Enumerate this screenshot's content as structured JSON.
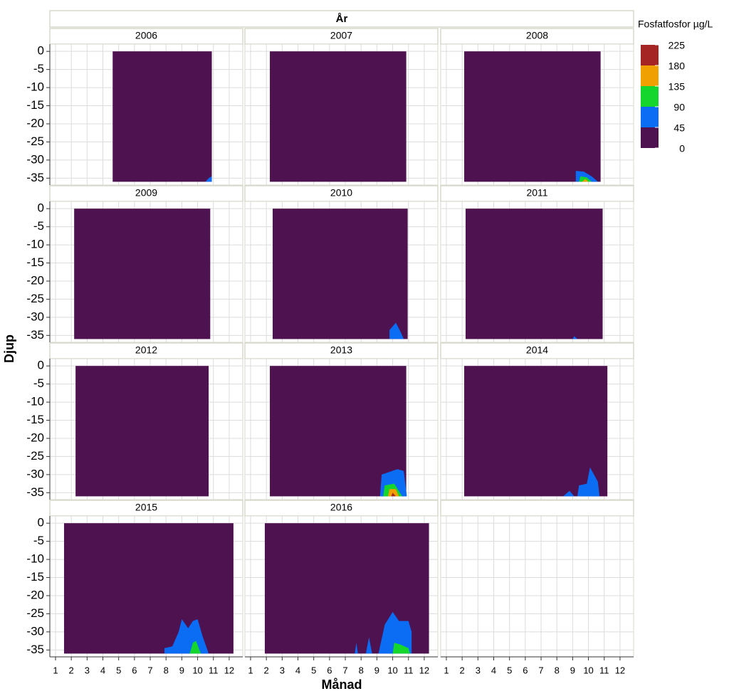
{
  "chart_data": {
    "type": "contour",
    "facet_title": "År",
    "xlabel": "Månad",
    "ylabel": "Djup",
    "xlim": [
      0.64,
      12.86
    ],
    "ylim": [
      -36.9,
      2
    ],
    "xticks": [
      1,
      2,
      3,
      4,
      5,
      6,
      7,
      8,
      9,
      10,
      11,
      12
    ],
    "yticks": [
      0,
      -5,
      -10,
      -15,
      -20,
      -25,
      -30,
      -35
    ],
    "grid": true,
    "legend_title": "Fosfatfosfor µg/L",
    "levels": [
      0,
      45,
      90,
      135,
      180,
      225
    ],
    "colors": [
      "#4e1250",
      "#0b6cf4",
      "#14d62c",
      "#f0a000",
      "#a52525"
    ],
    "depth_bottom": -36,
    "panels": [
      {
        "label": "2006",
        "extent": [
          4.62,
          10.9
        ],
        "regions": [
          {
            "level": 1,
            "x": [
              10.5,
              10.7,
              10.9,
              10.9
            ],
            "y": [
              -36,
              -35,
              -34.5,
              -36
            ]
          }
        ]
      },
      {
        "label": "2007",
        "extent": [
          2.22,
          10.86
        ],
        "regions": []
      },
      {
        "label": "2008",
        "extent": [
          2.13,
          10.77
        ],
        "regions": [
          {
            "level": 1,
            "x": [
              9.2,
              9.2,
              9.7,
              10.2,
              10.6
            ],
            "y": [
              -36,
              -33,
              -33.2,
              -34.5,
              -36
            ]
          },
          {
            "level": 2,
            "x": [
              9.4,
              9.5,
              9.9,
              10.2
            ],
            "y": [
              -36,
              -34.5,
              -34.8,
              -36
            ]
          },
          {
            "level": 3,
            "x": [
              9.6,
              9.8,
              10
            ],
            "y": [
              -36,
              -35.2,
              -36
            ]
          }
        ]
      },
      {
        "label": "2009",
        "extent": [
          2.18,
          10.8
        ],
        "regions": []
      },
      {
        "label": "2010",
        "extent": [
          2.4,
          10.95
        ],
        "regions": [
          {
            "level": 1,
            "x": [
              9.8,
              9.8,
              10.2,
              10.5,
              10.7
            ],
            "y": [
              -36,
              -33.5,
              -31.5,
              -34,
              -36
            ]
          }
        ]
      },
      {
        "label": "2011",
        "extent": [
          2.22,
          10.9
        ],
        "regions": [
          {
            "level": 1,
            "x": [
              9,
              9.1,
              9.3
            ],
            "y": [
              -36,
              -35.2,
              -36
            ]
          }
        ]
      },
      {
        "label": "2012",
        "extent": [
          2.27,
          10.7
        ],
        "regions": []
      },
      {
        "label": "2013",
        "extent": [
          2.22,
          10.86
        ],
        "regions": [
          {
            "level": 1,
            "x": [
              9.2,
              9.3,
              10.3,
              10.7,
              10.9
            ],
            "y": [
              -36,
              -30,
              -28.5,
              -29,
              -36
            ]
          },
          {
            "level": 2,
            "x": [
              9.4,
              9.5,
              10.1,
              10.6
            ],
            "y": [
              -36,
              -33,
              -32.5,
              -36
            ]
          },
          {
            "level": 3,
            "x": [
              9.7,
              9.8,
              10.2,
              10.4
            ],
            "y": [
              -36,
              -34,
              -34,
              -36
            ]
          },
          {
            "level": 4,
            "x": [
              9.9,
              10,
              10.2
            ],
            "y": [
              -36,
              -35,
              -36
            ]
          }
        ]
      },
      {
        "label": "2014",
        "extent": [
          2.13,
          11.2
        ],
        "regions": [
          {
            "level": 1,
            "x": [
              8.4,
              8.8,
              9.1
            ],
            "y": [
              -36,
              -34.5,
              -36
            ]
          },
          {
            "level": 1,
            "x": [
              9.3,
              9.4,
              9.9,
              10.1,
              10.6,
              10.7
            ],
            "y": [
              -36,
              -33,
              -32.5,
              -28,
              -32,
              -36
            ]
          }
        ]
      },
      {
        "label": "2015",
        "extent": [
          1.54,
          12.27
        ],
        "regions": [
          {
            "level": 1,
            "x": [
              7.9,
              7.9,
              8.4,
              8.8,
              9.0,
              9.4,
              9.7,
              10.0,
              10.3,
              10.7
            ],
            "y": [
              -36,
              -34.5,
              -34,
              -30,
              -26.5,
              -29,
              -27,
              -26.5,
              -31,
              -36
            ]
          },
          {
            "level": 2,
            "x": [
              9.5,
              9.7,
              9.9,
              10.2
            ],
            "y": [
              -36,
              -33,
              -32.5,
              -36
            ]
          }
        ]
      },
      {
        "label": "2016",
        "extent": [
          1.9,
          12.3
        ],
        "regions": [
          {
            "level": 1,
            "x": [
              7.6,
              7.7,
              7.8
            ],
            "y": [
              -36,
              -33,
              -36
            ]
          },
          {
            "level": 1,
            "x": [
              8.3,
              8.5,
              8.7
            ],
            "y": [
              -36,
              -31.5,
              -36
            ]
          },
          {
            "level": 1,
            "x": [
              9.1,
              9.5,
              10.0,
              10.4,
              11.0,
              11.2,
              11.2
            ],
            "y": [
              -36,
              -28,
              -24.5,
              -27,
              -27,
              -30,
              -36
            ]
          },
          {
            "level": 2,
            "x": [
              10.0,
              10.1,
              10.5,
              11.0,
              11.1
            ],
            "y": [
              -36,
              -33,
              -33.5,
              -34.5,
              -36
            ]
          }
        ]
      }
    ]
  }
}
